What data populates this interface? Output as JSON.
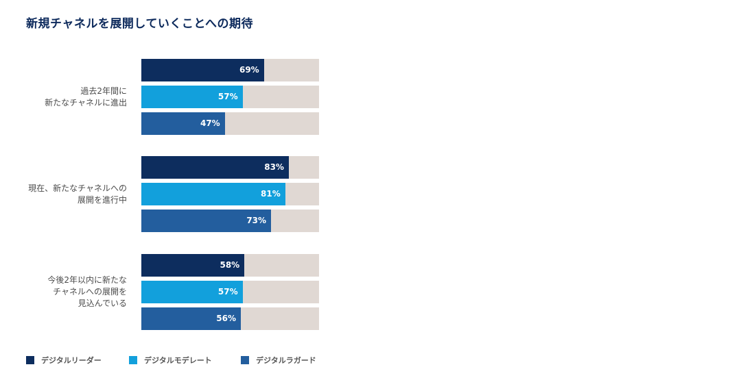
{
  "title": "新規チャネルを展開していくことへの期待",
  "chart_data": {
    "type": "bar",
    "orientation": "horizontal",
    "title": "新規チャネルを展開していくことへの期待",
    "categories": [
      "過去2年間に\n新たなチャネルに進出",
      "現在、新たなチャネルへの\n展開を進行中",
      "今後2年以内に新たな\nチャネルへの展開を\n見込んでいる"
    ],
    "series": [
      {
        "name": "デジタルリーダー",
        "color": "#0d2d5e",
        "values": [
          69,
          83,
          58
        ]
      },
      {
        "name": "デジタルモデレート",
        "color": "#12a0dc",
        "values": [
          57,
          81,
          57
        ]
      },
      {
        "name": "デジタルラガード",
        "color": "#235e9e",
        "values": [
          47,
          73,
          56
        ]
      }
    ],
    "value_suffix": "%",
    "xlim": [
      0,
      100
    ],
    "track_color": "#e0d8d3",
    "grid": false,
    "legend_position": "bottom-left"
  }
}
